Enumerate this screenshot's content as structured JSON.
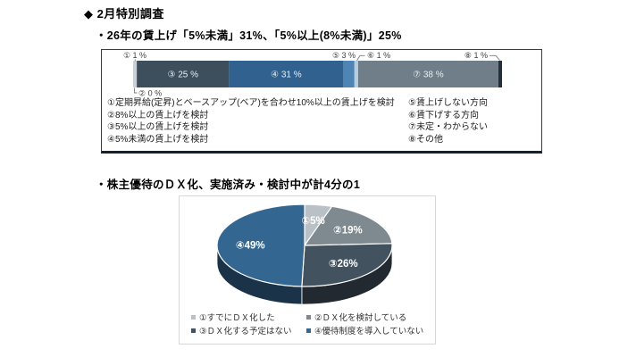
{
  "page": {
    "title": "◆ 2月特別調査",
    "subtitle_wage": "・26年の賃上げ「5%未満」31%、「5%以上(8%未満)」25%",
    "subtitle_dx": "・株主優待のＤＸ化、実施済み・検討中が計4分の1"
  },
  "chart_data": [
    {
      "type": "bar",
      "variant": "horizontal-stacked",
      "unit": "%",
      "axis_range": [
        0,
        100
      ],
      "segments": [
        {
          "num": "①",
          "value": 1,
          "color": "#c9d2d8",
          "label": "① 1 %",
          "label_pos": "above"
        },
        {
          "num": "②",
          "value": 0,
          "color": "#8aa0b0",
          "label": "② 0 %",
          "label_pos": "below"
        },
        {
          "num": "③",
          "value": 25,
          "color": "#3d4e5c",
          "label": "③ 25 %",
          "label_pos": "inside"
        },
        {
          "num": "④",
          "value": 31,
          "color": "#31628f",
          "label": "④ 31 %",
          "label_pos": "inside"
        },
        {
          "num": "⑤",
          "value": 3,
          "color": "#4e85b5",
          "label": "⑤ 3 %",
          "label_pos": "above"
        },
        {
          "num": "⑥",
          "value": 1,
          "color": "#b7cdde",
          "label": "⑥ 1 %",
          "label_pos": "above"
        },
        {
          "num": "⑦",
          "value": 38,
          "color": "#6f7e88",
          "label": "⑦ 38 %",
          "label_pos": "inside"
        },
        {
          "num": "⑧",
          "value": 1,
          "color": "#232f3b",
          "label": "⑧ 1 %",
          "label_pos": "above"
        }
      ],
      "legend_columns": [
        [
          "①定期昇給(定昇)とベースアップ(ベア)を合わせ10%以上の賃上げを検討",
          "②8%以上の賃上げを検討",
          "③5%以上の賃上げを検討",
          "④5%未満の賃上げを検討"
        ],
        [
          "⑤賃上げしない方向",
          "⑥賃下げする方向",
          "⑦未定・わからない",
          "⑧その他"
        ]
      ]
    },
    {
      "type": "pie",
      "variant": "pie-3d",
      "unit": "%",
      "slices": [
        {
          "num": "①",
          "value": 5,
          "color": "#b9c1c7",
          "label": "①5%",
          "legend": "①すでにＤＸ化した"
        },
        {
          "num": "②",
          "value": 19,
          "color": "#7f8990",
          "label": "②19%",
          "legend": "②ＤＸ化を検討している"
        },
        {
          "num": "③",
          "value": 26,
          "color": "#43525f",
          "label": "③26%",
          "legend": "③ＤＸ化する予定はない"
        },
        {
          "num": "④",
          "value": 49,
          "color": "#336690",
          "label": "④49%",
          "legend": "④優待制度を導入していない"
        }
      ]
    }
  ]
}
